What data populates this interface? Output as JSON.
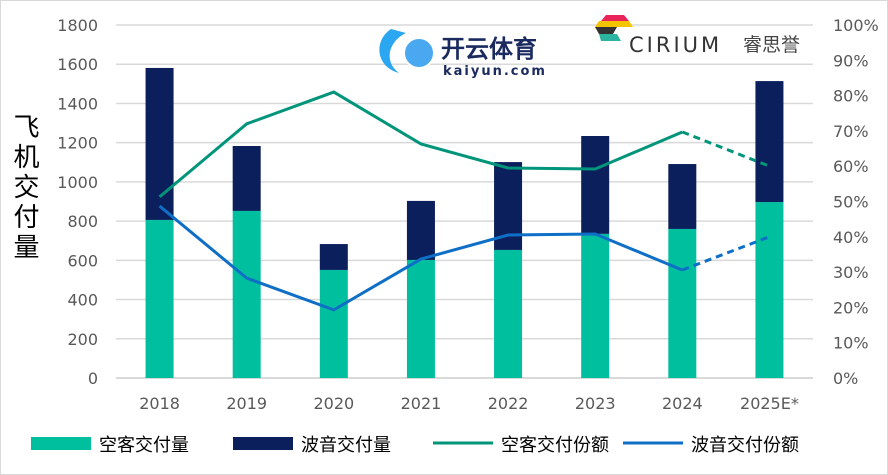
{
  "chart_data": {
    "type": "bar",
    "stacked": true,
    "ylabel": "飞机交付量",
    "categories": [
      "2018",
      "2019",
      "2020",
      "2021",
      "2022",
      "2023",
      "2024",
      "2025E*"
    ],
    "ylim": [
      0,
      1800
    ],
    "yticks": [
      0,
      200,
      400,
      600,
      800,
      1000,
      1200,
      1400,
      1600,
      1800
    ],
    "y2lim": [
      0,
      100
    ],
    "y2ticks": [
      "0%",
      "10%",
      "20%",
      "30%",
      "40%",
      "50%",
      "60%",
      "70%",
      "80%",
      "90%",
      "100%"
    ],
    "grid": true,
    "legend_position": "bottom",
    "series": [
      {
        "name": "空客交付量",
        "type": "bar",
        "axis": "left",
        "color": "#00BF9F",
        "values": [
          806,
          852,
          551,
          602,
          653,
          735,
          760,
          897
        ]
      },
      {
        "name": "波音交付量",
        "type": "bar",
        "axis": "left",
        "color": "#0B1F5C",
        "values": [
          775,
          331,
          132,
          301,
          448,
          499,
          331,
          617
        ]
      },
      {
        "name": "空客交付份额",
        "type": "line",
        "axis": "right",
        "color": "#00957A",
        "unit": "%",
        "values": [
          51.3,
          72,
          81,
          66.3,
          59.5,
          59.2,
          69.7,
          60
        ],
        "dashed_from_index": 6
      },
      {
        "name": "波音交付份额",
        "type": "line",
        "axis": "right",
        "color": "#0F6FC6",
        "unit": "%",
        "values": [
          48.7,
          28.3,
          19.3,
          33.7,
          40.5,
          40.8,
          30.6,
          40
        ],
        "dashed_from_index": 6
      }
    ]
  },
  "logo": {
    "brand": "CIRIUM",
    "brand_cn": "睿思誉"
  },
  "watermark": {
    "text": "开云体育",
    "domain": "kaiyun.com"
  }
}
